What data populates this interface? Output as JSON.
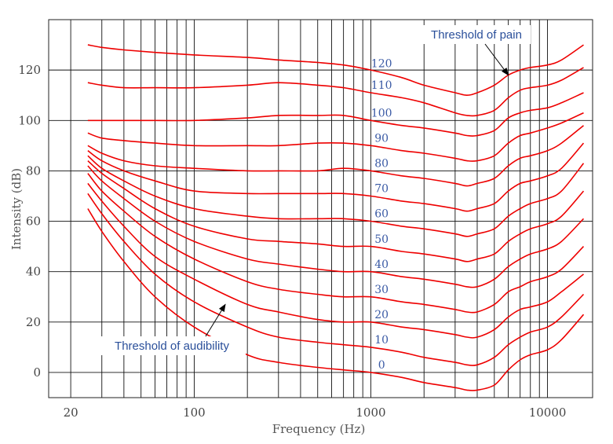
{
  "chart_data": {
    "type": "line",
    "title": "",
    "xlabel": "Frequency (Hz)",
    "ylabel": "Intensity (dB)",
    "x_scale": "log",
    "xlim": [
      15,
      18000
    ],
    "ylim": [
      -10,
      140
    ],
    "x_ticks": [
      {
        "value": 20,
        "label": "20"
      },
      {
        "value": 100,
        "label": "100"
      },
      {
        "value": 1000,
        "label": "1000"
      },
      {
        "value": 10000,
        "label": "10000"
      }
    ],
    "y_ticks": [
      {
        "value": 0,
        "label": "0"
      },
      {
        "value": 20,
        "label": "20"
      },
      {
        "value": 40,
        "label": "40"
      },
      {
        "value": 60,
        "label": "60"
      },
      {
        "value": 80,
        "label": "80"
      },
      {
        "value": 100,
        "label": "100"
      },
      {
        "value": 120,
        "label": "120"
      }
    ],
    "grid": true,
    "line_color": "#ee0000",
    "label_color": "#3a5aa5",
    "x": [
      25,
      30,
      40,
      60,
      100,
      200,
      300,
      500,
      700,
      1000,
      1500,
      2000,
      3000,
      3500,
      4000,
      5000,
      6000,
      7000,
      8000,
      10000,
      12000,
      16000
    ],
    "series": [
      {
        "name": "0",
        "values": [
          65,
          56,
          44,
          30,
          18,
          7,
          4,
          2,
          1,
          0,
          -2,
          -4,
          -6,
          -7,
          -7,
          -5,
          1,
          5,
          7,
          9,
          13,
          23
        ]
      },
      {
        "name": "10",
        "values": [
          71,
          63,
          52,
          39,
          28,
          18,
          14,
          12,
          11,
          10,
          8,
          6,
          4,
          3,
          3,
          6,
          11,
          14,
          16,
          18,
          22,
          31
        ]
      },
      {
        "name": "20",
        "values": [
          75,
          68,
          58,
          46,
          37,
          27,
          24,
          21,
          20,
          20,
          18,
          17,
          15,
          14,
          14,
          17,
          22,
          25,
          26,
          28,
          32,
          39
        ]
      },
      {
        "name": "30",
        "values": [
          79,
          72,
          64,
          54,
          45,
          36,
          33,
          31,
          30,
          30,
          28,
          27,
          25,
          24,
          24,
          27,
          32,
          34,
          36,
          38,
          41,
          50
        ]
      },
      {
        "name": "40",
        "values": [
          82,
          76,
          69,
          60,
          52,
          45,
          43,
          41,
          40,
          40,
          38,
          37,
          35,
          34,
          34,
          37,
          42,
          45,
          47,
          49,
          52,
          61
        ]
      },
      {
        "name": "50",
        "values": [
          84,
          79,
          73,
          65,
          58,
          53,
          52,
          51,
          50,
          50,
          48,
          47,
          45,
          44,
          45,
          47,
          52,
          55,
          57,
          59,
          62,
          72
        ]
      },
      {
        "name": "60",
        "values": [
          86,
          81,
          76,
          70,
          65,
          62,
          61,
          61,
          61,
          60,
          58,
          57,
          55,
          54,
          55,
          57,
          62,
          65,
          67,
          69,
          72,
          83
        ]
      },
      {
        "name": "70",
        "values": [
          88,
          84,
          80,
          76,
          72,
          71,
          71,
          71,
          71,
          70,
          68,
          67,
          65,
          64,
          65,
          67,
          72,
          75,
          76,
          78,
          81,
          91
        ]
      },
      {
        "name": "80",
        "values": [
          90,
          87,
          84,
          82,
          81,
          80,
          80,
          80,
          81,
          80,
          78,
          77,
          75,
          74,
          75,
          77,
          82,
          85,
          86,
          88,
          91,
          98
        ]
      },
      {
        "name": "90",
        "values": [
          95,
          93,
          92,
          91,
          90,
          90,
          90,
          91,
          91,
          90,
          88,
          87,
          85,
          84,
          84,
          86,
          91,
          94,
          95,
          97,
          99,
          103
        ]
      },
      {
        "name": "100",
        "values": [
          100,
          100,
          100,
          100,
          100,
          101,
          102,
          102,
          102,
          100,
          98,
          97,
          95,
          94,
          94,
          96,
          101,
          103,
          104,
          105,
          107,
          111
        ]
      },
      {
        "name": "110",
        "values": [
          115,
          114,
          113,
          113,
          113,
          114,
          115,
          114,
          113,
          111,
          109,
          107,
          103,
          102,
          102,
          104,
          109,
          112,
          113,
          114,
          116,
          121
        ]
      },
      {
        "name": "120",
        "values": [
          130,
          129,
          128,
          127,
          126,
          125,
          124,
          123,
          122,
          120,
          117,
          114,
          111,
          110,
          111,
          114,
          118,
          120,
          121,
          122,
          124,
          130
        ]
      }
    ],
    "annotations": [
      {
        "text": "Threshold of pain",
        "points_to": {
          "x": 6000,
          "y": 118
        }
      },
      {
        "text": "Threshold of audibility",
        "points_to": {
          "x": 150,
          "y": 27
        }
      }
    ]
  }
}
